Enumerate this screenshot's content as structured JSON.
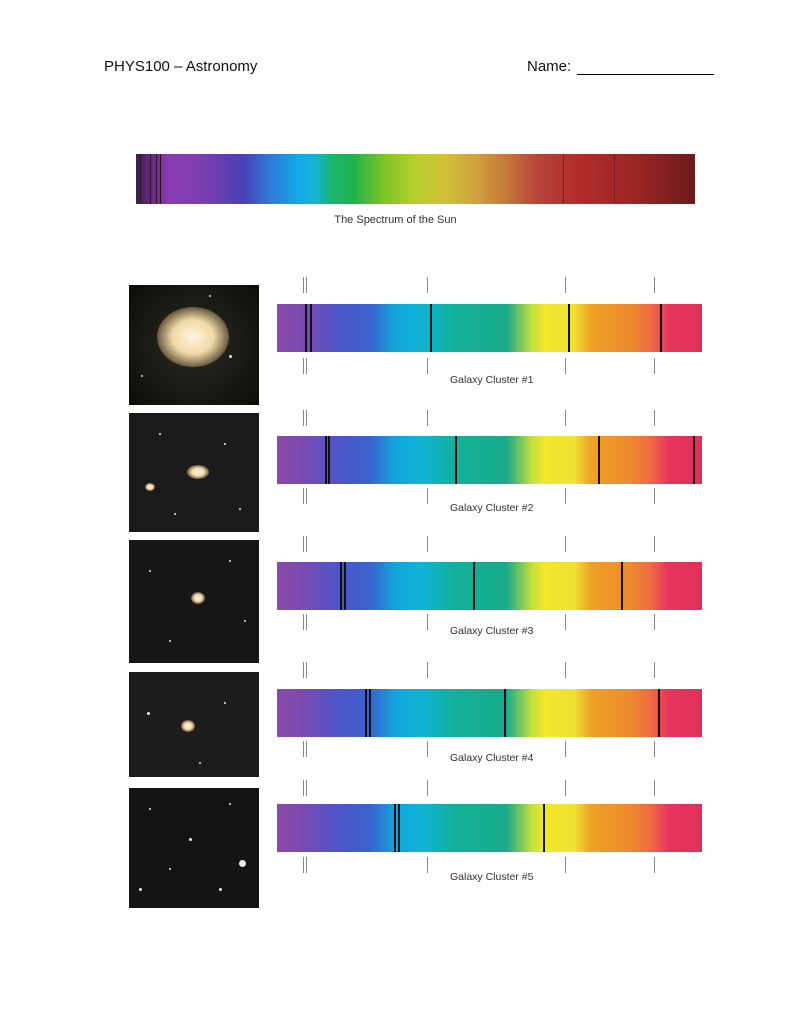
{
  "header": {
    "course": "PHYS100 – Astronomy",
    "name_label": "Name:"
  },
  "sun": {
    "caption": "The Spectrum of the Sun"
  },
  "clusters": [
    {
      "label": "Galaxy Cluster #1"
    },
    {
      "label": "Galaxy Cluster #2"
    },
    {
      "label": "Galaxy Cluster #3"
    },
    {
      "label": "Galaxy Cluster #4"
    },
    {
      "label": "Galaxy Cluster #5"
    }
  ],
  "colors": {
    "absorption_line": "#111111",
    "reference_tick": "#888888"
  }
}
